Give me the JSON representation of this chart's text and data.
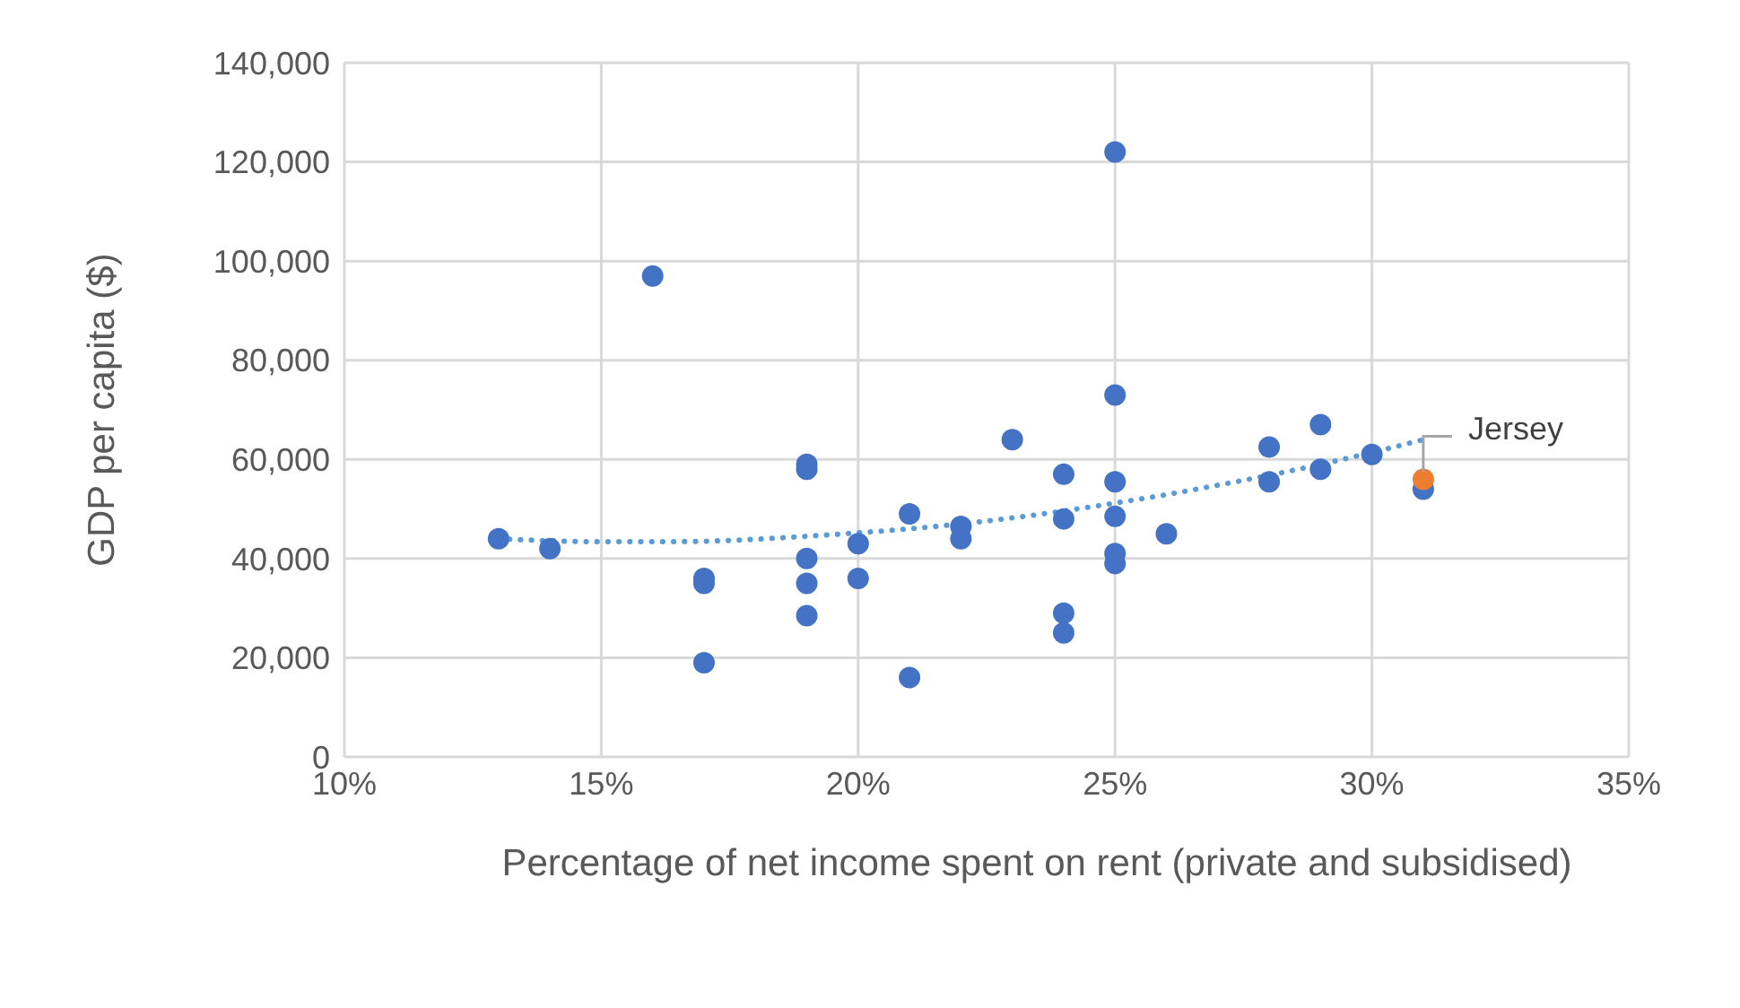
{
  "chart_data": {
    "type": "scatter",
    "xlabel": "Percentage of net income spent on rent (private and subsidised)",
    "ylabel": "GDP per capita ($)",
    "xlim": [
      10,
      35
    ],
    "xticks": [
      {
        "value": 10,
        "label": "10%"
      },
      {
        "value": 15,
        "label": "15%"
      },
      {
        "value": 20,
        "label": "20%"
      },
      {
        "value": 25,
        "label": "25%"
      },
      {
        "value": 30,
        "label": "30%"
      },
      {
        "value": 35,
        "label": "35%"
      }
    ],
    "ylim": [
      0,
      140000
    ],
    "yticks": [
      {
        "value": 0,
        "label": "0"
      },
      {
        "value": 20000,
        "label": "20,000"
      },
      {
        "value": 40000,
        "label": "40,000"
      },
      {
        "value": 60000,
        "label": "60,000"
      },
      {
        "value": 80000,
        "label": "80,000"
      },
      {
        "value": 100000,
        "label": "100,000"
      },
      {
        "value": 120000,
        "label": "120,000"
      },
      {
        "value": 140000,
        "label": "140,000"
      }
    ],
    "grid": true,
    "legend": false,
    "marker": "circle",
    "series": [
      {
        "color": "#4472c4",
        "x": [
          13,
          14,
          16,
          17,
          17,
          17,
          19,
          19,
          19,
          19,
          19,
          20,
          20,
          21,
          21,
          22,
          22,
          23,
          24,
          24,
          24,
          24,
          25,
          25,
          25,
          25,
          25,
          25,
          26,
          28,
          28,
          29,
          29,
          30,
          31
        ],
        "values": [
          44000,
          42000,
          97000,
          36000,
          35000,
          19000,
          59000,
          58000,
          40000,
          35000,
          28500,
          43000,
          36000,
          49000,
          16000,
          46500,
          44000,
          64000,
          57000,
          48000,
          29000,
          25000,
          122000,
          73000,
          55500,
          48500,
          41000,
          39000,
          45000,
          62500,
          55500,
          67000,
          58000,
          61000,
          54000
        ]
      },
      {
        "color": "#ed7d31",
        "x": [
          31
        ],
        "values": [
          56000
        ]
      },
      {
        "type": "line",
        "color": "#5b9bd5",
        "marker": "none",
        "line_style": "dotted",
        "x": [
          13,
          14,
          15,
          16,
          17,
          18,
          19,
          20,
          21,
          22,
          23,
          24,
          25,
          26,
          27,
          28,
          29,
          30,
          31
        ],
        "values": [
          44000,
          43600,
          43400,
          43400,
          43500,
          43900,
          44500,
          45200,
          46000,
          47000,
          48200,
          49600,
          51200,
          52900,
          54800,
          56800,
          59000,
          61400,
          64000
        ]
      }
    ],
    "annotations": [
      {
        "text": "Jersey",
        "x": 31,
        "y": 56000
      }
    ]
  }
}
